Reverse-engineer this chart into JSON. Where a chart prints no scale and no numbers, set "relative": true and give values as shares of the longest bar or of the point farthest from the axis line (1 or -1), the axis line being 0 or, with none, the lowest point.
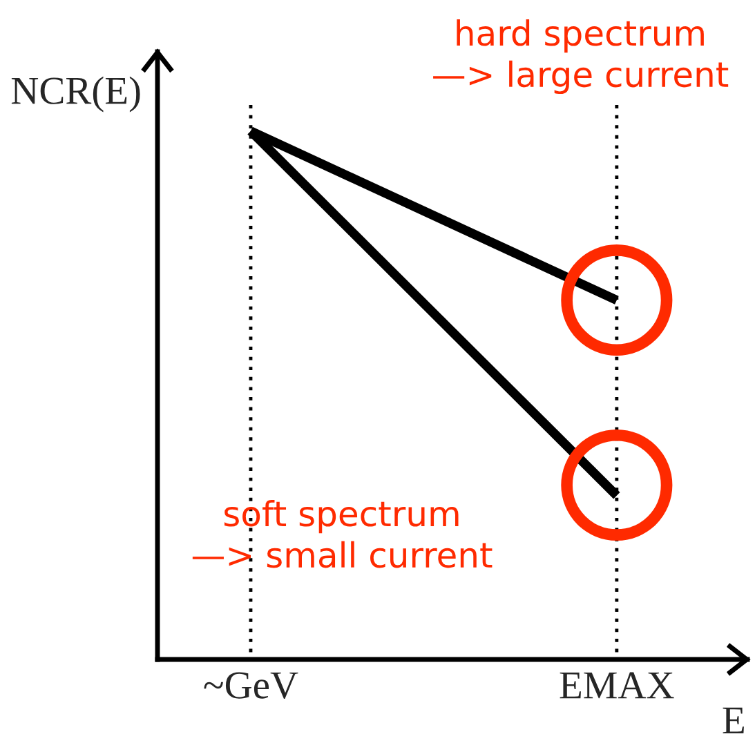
{
  "chart_data": {
    "type": "line",
    "relative": true,
    "categories": [
      "~GeV",
      "EMAX"
    ],
    "xlabel": "E",
    "ylabel": "NCR(E)",
    "series": [
      {
        "color": "#000000",
        "values": [
          1,
          0.68
        ]
      },
      {
        "color": "#000000",
        "values": [
          1,
          0.31
        ]
      },
      {
        "type": "scatter",
        "marker": "circle",
        "color": "#ff2a00",
        "x": [
          "EMAX",
          "EMAX"
        ],
        "values": [
          0.68,
          0.33
        ]
      }
    ],
    "annotations": [
      "hard spectrum\n—> large current",
      "soft spectrum\n—> small current"
    ],
    "line_style": "solid",
    "tick_labels": "x",
    "grid": "x"
  }
}
